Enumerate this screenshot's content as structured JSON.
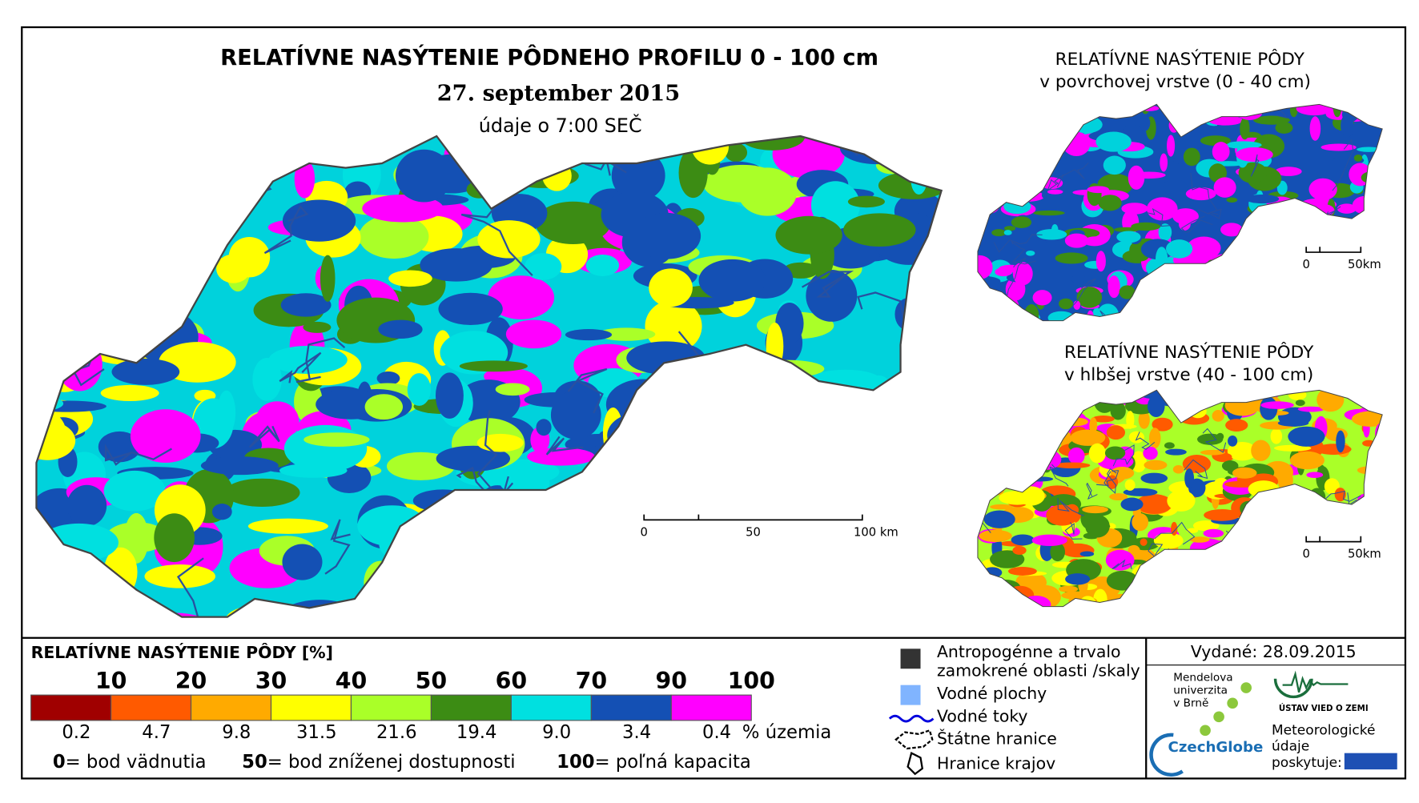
{
  "main_map": {
    "title": "RELATÍVNE NASÝTENIE PÔDNEHO PROFILU 0 - 100 cm",
    "date": "27. september 2015",
    "time": "údaje o 7:00 SEČ",
    "scale_labels": [
      "0",
      "50",
      "100 km"
    ]
  },
  "surface_map": {
    "title": "RELATÍVNE NASÝTENIE PÔDY",
    "subtitle": "v povrchovej vrstve (0 - 40 cm)",
    "scale_labels": [
      "0",
      "50km"
    ]
  },
  "deep_map": {
    "title": "RELATÍVNE NASÝTENIE PÔDY",
    "subtitle": "v hlbšej vrstve (40 - 100 cm)",
    "scale_labels": [
      "0",
      "50km"
    ]
  },
  "legend": {
    "title": "RELATÍVNE NASÝTENIE PÔDY [%]",
    "classes": [
      {
        "upper": "10",
        "color": "#a00000",
        "share": "0.2"
      },
      {
        "upper": "20",
        "color": "#ff5a00",
        "share": "4.7"
      },
      {
        "upper": "30",
        "color": "#ffaa00",
        "share": "9.8"
      },
      {
        "upper": "40",
        "color": "#ffff00",
        "share": "31.5"
      },
      {
        "upper": "50",
        "color": "#aaff28",
        "share": "21.6"
      },
      {
        "upper": "60",
        "color": "#3c8c14",
        "share": "19.4"
      },
      {
        "upper": "70",
        "color": "#00e0e0",
        "share": "9.0"
      },
      {
        "upper": "90",
        "color": "#1450b4",
        "share": "3.4"
      },
      {
        "upper": "100",
        "color": "#ff00ff",
        "share": "0.4"
      }
    ],
    "unit": "% územia",
    "notes": [
      {
        "value": "0",
        "text": "= bod vädnutia"
      },
      {
        "value": "50",
        "text": "= bod zníženej dostupnosti"
      },
      {
        "value": "100",
        "text": "= poľná kapacita"
      }
    ]
  },
  "symbols": [
    {
      "lines": [
        "Antropogénne a trvalo",
        "zamokrené oblasti /skaly"
      ]
    },
    {
      "lines": [
        "Vodné plochy"
      ]
    },
    {
      "lines": [
        "Vodné toky"
      ]
    },
    {
      "lines": [
        "Štátne hranice"
      ]
    },
    {
      "lines": [
        "Hranice krajov"
      ]
    }
  ],
  "issued": "Vydané: 28.09.2015",
  "logos": {
    "mendel": [
      "Mendelova",
      "univerzita",
      "v Brně"
    ],
    "czechglobe": "CzechGlobe",
    "ustav": "ÚSTAV VIED O ZEMI",
    "meteo": [
      "Meteorologické",
      "údaje",
      "poskytuje:"
    ]
  }
}
